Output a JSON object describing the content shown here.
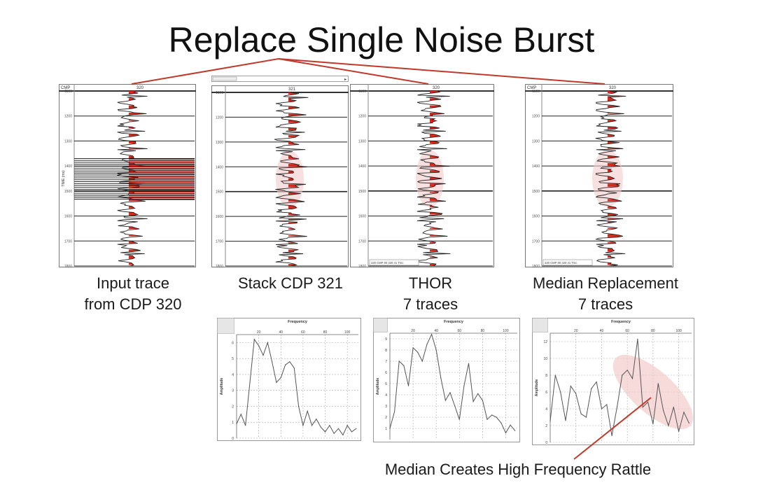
{
  "title": "Replace Single Noise Burst",
  "colors": {
    "fill": "#d42a1e",
    "pointer": "#c0392b",
    "highlight": "#f4cccc"
  },
  "captions": {
    "input": [
      "Input trace",
      "from CDP 320"
    ],
    "stack": [
      "Stack CDP 321"
    ],
    "thor": [
      "THOR",
      "7 traces"
    ],
    "median": [
      "Median Replacement",
      "7 traces"
    ]
  },
  "annotation": "Median Creates High Frequency Rattle",
  "chart_data": [
    {
      "type": "line",
      "name": "input-trace",
      "header": {
        "left": "CMP",
        "center": "320"
      },
      "ylabel": "TIME (ms)",
      "yticks": [
        "1100",
        "1200",
        "1300",
        "1400",
        "1500",
        "1600",
        "1700",
        "1800"
      ],
      "ylim": [
        1100,
        1800
      ],
      "footer": "",
      "noise_burst": [
        1370,
        1540
      ]
    },
    {
      "type": "line",
      "name": "stack-trace",
      "header": {
        "left": "",
        "center": "321"
      },
      "ylabel": "",
      "yticks": [
        "1100",
        "1200",
        "1300",
        "1400",
        "1500",
        "1600",
        "1700",
        "1800"
      ],
      "ylim": [
        1100,
        1800
      ],
      "footer": "",
      "noise_burst": null
    },
    {
      "type": "line",
      "name": "thor-trace",
      "header": {
        "left": "",
        "center": "320"
      },
      "ylabel": "",
      "yticks": [
        "1100",
        "1200",
        "1300",
        "1400",
        "1500",
        "1600",
        "1700",
        "1800"
      ],
      "ylim": [
        1100,
        1800
      ],
      "footer": "320 CMP 80 320 41 Trnc",
      "noise_burst": null
    },
    {
      "type": "line",
      "name": "median-trace",
      "header": {
        "left": "CMP",
        "center": "320"
      },
      "ylabel": "",
      "yticks": [
        "1100",
        "1200",
        "1300",
        "1400",
        "1500",
        "1600",
        "1700",
        "1800"
      ],
      "ylim": [
        1100,
        1800
      ],
      "footer": "320 CMP 80 320 41 Trnc",
      "noise_burst": null
    },
    {
      "type": "line",
      "name": "stack-spectrum",
      "title": "Frequency",
      "xlabel": "Frequency",
      "ylabel": "Amplitude",
      "xlim": [
        0,
        110
      ],
      "ylim": [
        0,
        6.5
      ],
      "xticks": [
        20,
        40,
        60,
        80,
        100
      ],
      "yticks": [
        0,
        1,
        2,
        3,
        4,
        5,
        6
      ],
      "x": [
        0,
        4,
        8,
        12,
        16,
        20,
        24,
        28,
        32,
        36,
        40,
        44,
        48,
        52,
        56,
        60,
        64,
        68,
        72,
        76,
        80,
        84,
        88,
        92,
        96,
        100,
        104,
        108
      ],
      "y": [
        0.9,
        1.5,
        0.8,
        3.5,
        6.2,
        5.8,
        5.2,
        6.0,
        4.8,
        3.5,
        3.8,
        4.6,
        4.8,
        4.4,
        2.0,
        0.8,
        1.7,
        0.8,
        1.2,
        0.7,
        0.4,
        0.8,
        0.3,
        0.6,
        0.2,
        0.8,
        0.4,
        0.6
      ]
    },
    {
      "type": "line",
      "name": "thor-spectrum",
      "title": "Frequency",
      "xlabel": "Frequency",
      "ylabel": "Amplitude",
      "xlim": [
        0,
        110
      ],
      "ylim": [
        0,
        9.5
      ],
      "xticks": [
        20,
        40,
        60,
        80,
        100
      ],
      "yticks": [
        1,
        2,
        3,
        4,
        5,
        6,
        7,
        8,
        9
      ],
      "x": [
        0,
        4,
        8,
        12,
        16,
        20,
        24,
        28,
        32,
        36,
        40,
        44,
        48,
        52,
        56,
        60,
        64,
        68,
        72,
        76,
        80,
        84,
        88,
        92,
        96,
        100,
        104,
        108
      ],
      "y": [
        1.0,
        2.5,
        7.0,
        6.6,
        4.8,
        8.2,
        7.8,
        7.0,
        8.5,
        9.4,
        8.0,
        5.5,
        3.5,
        4.2,
        3.0,
        1.8,
        4.8,
        6.8,
        3.4,
        4.1,
        3.5,
        1.8,
        2.2,
        2.0,
        1.5,
        0.6,
        1.3,
        0.8
      ]
    },
    {
      "type": "line",
      "name": "median-spectrum",
      "title": "Frequency",
      "xlabel": "Frequency",
      "ylabel": "Amplitude",
      "xlim": [
        0,
        110
      ],
      "ylim": [
        0,
        13
      ],
      "xticks": [
        20,
        40,
        60,
        80,
        100
      ],
      "yticks": [
        0,
        2,
        4,
        6,
        8,
        10,
        12
      ],
      "x": [
        0,
        4,
        8,
        12,
        16,
        20,
        24,
        28,
        32,
        36,
        40,
        44,
        48,
        52,
        56,
        60,
        64,
        68,
        72,
        76,
        80,
        84,
        88,
        92,
        96,
        100,
        104,
        108
      ],
      "y": [
        2.5,
        8.0,
        6.0,
        2.6,
        6.7,
        5.8,
        3.4,
        3.0,
        6.4,
        7.2,
        4.0,
        4.5,
        0.8,
        4.2,
        8.0,
        8.6,
        7.6,
        12.3,
        4.2,
        4.8,
        2.2,
        7.0,
        3.8,
        2.0,
        4.2,
        1.3,
        3.6,
        2.3
      ]
    }
  ]
}
